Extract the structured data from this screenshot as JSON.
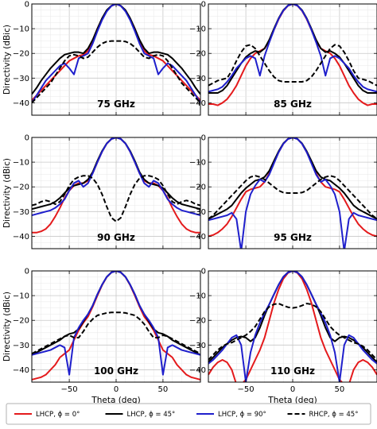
{
  "chart_data": {
    "type": "line",
    "layout": "3x2 grid",
    "xlabel": "Theta (deg)",
    "ylabel": "Directivity (dBic)",
    "xlim": [
      -90,
      90
    ],
    "ylim": [
      -45,
      0
    ],
    "xticks": [
      -50,
      0,
      50
    ],
    "yticks": [
      0,
      -10,
      -20,
      -30,
      -40
    ],
    "xtick_labels": [
      "−50",
      "0",
      "50"
    ],
    "ytick_labels": [
      "0",
      "−10",
      "−20",
      "−30",
      "−40"
    ],
    "grid": true,
    "legend": {
      "placement": "bottom",
      "entries": [
        {
          "label": "LHCP, ϕ = 0°",
          "color": "#e41a1c",
          "dash": "solid"
        },
        {
          "label": "LHCP, ϕ = 45°",
          "color": "#000000",
          "dash": "solid"
        },
        {
          "label": "LHCP, ϕ = 90°",
          "color": "#1f1fcc",
          "dash": "solid"
        },
        {
          "label": "RHCP, ϕ = 45°",
          "color": "#000000",
          "dash": "dashed"
        }
      ]
    },
    "x": [
      -90,
      -85,
      -80,
      -75,
      -70,
      -65,
      -60,
      -55,
      -50,
      -45,
      -40,
      -35,
      -30,
      -25,
      -20,
      -15,
      -10,
      -5,
      0,
      5,
      10,
      15,
      20,
      25,
      30,
      35,
      40,
      45,
      50,
      55,
      60,
      65,
      70,
      75,
      80,
      85,
      90
    ],
    "panels": [
      {
        "label": "75 GHz",
        "series": {
          "lhcp_phi0": [
            -39,
            -37,
            -35,
            -33,
            -31,
            -29,
            -27,
            -25,
            -23,
            -22,
            -21,
            -20.5,
            -19,
            -15,
            -10,
            -6,
            -2.8,
            -0.8,
            0,
            -0.8,
            -2.8,
            -6,
            -10,
            -15,
            -19,
            -20.5,
            -21,
            -22,
            -23,
            -25,
            -27,
            -29,
            -31,
            -33,
            -35,
            -37,
            -39
          ],
          "lhcp_phi45": [
            -36.5,
            -34,
            -31,
            -28.5,
            -26,
            -24,
            -22,
            -20.5,
            -20,
            -19.5,
            -19.5,
            -20,
            -18,
            -14.5,
            -10,
            -5.8,
            -2.5,
            -0.7,
            0,
            -0.7,
            -2.5,
            -5.8,
            -10,
            -14.5,
            -18,
            -20,
            -19.5,
            -19.5,
            -20,
            -20.5,
            -22,
            -24,
            -26,
            -28.5,
            -31,
            -34,
            -36.5
          ],
          "lhcp_phi90": [
            -40,
            -37,
            -34,
            -31,
            -29,
            -27,
            -25,
            -24,
            -26,
            -28.5,
            -22,
            -21,
            -20,
            -16,
            -11,
            -6.5,
            -3,
            -0.8,
            0,
            -0.8,
            -3,
            -6.5,
            -11,
            -16,
            -20,
            -21,
            -22,
            -28.5,
            -26,
            -24,
            -25,
            -27,
            -29,
            -31,
            -34,
            -37,
            -40
          ],
          "rhcp_phi45": [
            -40,
            -38,
            -36,
            -34,
            -32,
            -29,
            -26,
            -23,
            -21,
            -20.5,
            -21,
            -22,
            -21.5,
            -19.5,
            -17.5,
            -16,
            -15.2,
            -15,
            -15,
            -15,
            -15.2,
            -16,
            -17.5,
            -19.5,
            -21.5,
            -22,
            -21,
            -20.5,
            -21,
            -23,
            -26,
            -29,
            -32,
            -34,
            -36,
            -38,
            -40
          ]
        }
      },
      {
        "label": "85 GHz",
        "series": {
          "lhcp_phi0": [
            -40.5,
            -40.5,
            -41,
            -40,
            -38.5,
            -36,
            -33,
            -29,
            -25,
            -22,
            -20,
            -19,
            -18,
            -15,
            -10.5,
            -6.2,
            -2.8,
            -0.7,
            0,
            -0.7,
            -2.8,
            -6.2,
            -10.5,
            -15,
            -18,
            -19,
            -20,
            -22,
            -25,
            -29,
            -33,
            -36,
            -38.5,
            -40,
            -41,
            -40.5,
            -40.5
          ],
          "lhcp_phi45": [
            -36,
            -36,
            -36,
            -35,
            -33,
            -30,
            -27,
            -24,
            -21.5,
            -20,
            -19,
            -19.5,
            -18,
            -14.5,
            -10,
            -5.8,
            -2.5,
            -0.6,
            0,
            -0.6,
            -2.5,
            -5.8,
            -10,
            -14.5,
            -18,
            -19.5,
            -19,
            -20,
            -21.5,
            -24,
            -27,
            -30,
            -33,
            -35,
            -36,
            -36,
            -36
          ],
          "lhcp_phi90": [
            -35.5,
            -35,
            -34.5,
            -33.5,
            -31.5,
            -29,
            -26,
            -24,
            -22,
            -21,
            -22,
            -29,
            -21,
            -15.5,
            -10.5,
            -6,
            -2.7,
            -0.6,
            0,
            -0.6,
            -2.7,
            -6,
            -10.5,
            -15.5,
            -21,
            -29,
            -22,
            -21,
            -22,
            -24,
            -26,
            -29,
            -31.5,
            -33.5,
            -34.5,
            -35,
            -35.5
          ],
          "rhcp_phi45": [
            -33,
            -32,
            -31,
            -30.5,
            -30,
            -27,
            -23,
            -19.5,
            -17,
            -16.5,
            -18,
            -21,
            -24,
            -27,
            -29.5,
            -31,
            -31.5,
            -31.5,
            -31.5,
            -31.5,
            -31.5,
            -31,
            -29.5,
            -27,
            -24,
            -21,
            -18,
            -16.5,
            -17,
            -19.5,
            -23,
            -27,
            -30,
            -30.5,
            -31,
            -32,
            -33
          ]
        }
      },
      {
        "label": "90 GHz",
        "series": {
          "lhcp_phi0": [
            -38.5,
            -38.5,
            -38,
            -37,
            -35,
            -32,
            -28.5,
            -24.5,
            -21.5,
            -19.5,
            -18.5,
            -18.5,
            -17.5,
            -14.5,
            -10,
            -5.8,
            -2.5,
            -0.6,
            0,
            -0.6,
            -2.5,
            -5.8,
            -10,
            -14.5,
            -17.5,
            -18.5,
            -18.5,
            -19.5,
            -21.5,
            -24.5,
            -28.5,
            -32,
            -35,
            -37,
            -38,
            -38.5,
            -38.5
          ],
          "lhcp_phi45": [
            -29,
            -28.5,
            -28,
            -27.5,
            -27,
            -26,
            -24.5,
            -22.5,
            -20.5,
            -19.5,
            -19,
            -18.5,
            -17,
            -14,
            -9.5,
            -5.5,
            -2.4,
            -0.6,
            0,
            -0.6,
            -2.4,
            -5.5,
            -9.5,
            -14,
            -17,
            -18.5,
            -19,
            -19.5,
            -20.5,
            -22.5,
            -24.5,
            -26,
            -27,
            -27.5,
            -28,
            -28.5,
            -29
          ],
          "lhcp_phi90": [
            -31.5,
            -31,
            -30.5,
            -30,
            -29.5,
            -28.5,
            -27,
            -25,
            -21.5,
            -18.5,
            -17.5,
            -20,
            -18.5,
            -14.5,
            -10,
            -5.8,
            -2.5,
            -0.6,
            0,
            -0.6,
            -2.5,
            -5.8,
            -10,
            -14.5,
            -18.5,
            -20,
            -17.5,
            -18.5,
            -21.5,
            -25,
            -27,
            -28.5,
            -29.5,
            -30,
            -30.5,
            -31,
            -31.5
          ],
          "rhcp_phi45": [
            -27.5,
            -27,
            -26,
            -25.5,
            -26,
            -27,
            -26,
            -23,
            -19.5,
            -17,
            -16,
            -15.5,
            -15.5,
            -16.5,
            -19,
            -23,
            -28,
            -32.5,
            -34,
            -32.5,
            -28,
            -23,
            -19,
            -16.5,
            -15.5,
            -15.5,
            -16,
            -17,
            -19.5,
            -23,
            -26,
            -27,
            -26,
            -25.5,
            -26,
            -27,
            -27.5
          ]
        }
      },
      {
        "label": "95 GHz",
        "series": {
          "lhcp_phi0": [
            -40,
            -39.5,
            -38.5,
            -37,
            -35,
            -32,
            -28.5,
            -25,
            -22,
            -21,
            -20.5,
            -20,
            -18,
            -14.5,
            -10,
            -6,
            -2.6,
            -0.6,
            0,
            -0.6,
            -2.6,
            -6,
            -10,
            -14.5,
            -18,
            -20,
            -20.5,
            -21,
            -22,
            -25,
            -28.5,
            -32,
            -35,
            -37,
            -38.5,
            -39.5,
            -40
          ],
          "lhcp_phi45": [
            -33,
            -32,
            -31,
            -30,
            -29,
            -27.5,
            -25,
            -22.5,
            -20.5,
            -19,
            -17.5,
            -17,
            -16,
            -13.5,
            -9.5,
            -5.6,
            -2.4,
            -0.6,
            0,
            -0.6,
            -2.4,
            -5.6,
            -9.5,
            -13.5,
            -16,
            -17,
            -17.5,
            -19,
            -20.5,
            -22.5,
            -25,
            -27.5,
            -29,
            -30,
            -31,
            -32,
            -33
          ],
          "lhcp_phi90": [
            -33.5,
            -33,
            -32.5,
            -32,
            -31.5,
            -30.5,
            -33,
            -46,
            -30,
            -23,
            -19.5,
            -17,
            -18,
            -15,
            -10.5,
            -6,
            -2.6,
            -0.6,
            0,
            -0.6,
            -2.6,
            -6,
            -10.5,
            -15,
            -18,
            -17,
            -19.5,
            -23,
            -30,
            -46,
            -33,
            -30.5,
            -31.5,
            -32,
            -32.5,
            -33,
            -33.5
          ],
          "rhcp_phi45": [
            -33,
            -31.5,
            -29.5,
            -27.5,
            -25.5,
            -23.5,
            -21.5,
            -19.5,
            -17.5,
            -16,
            -15.5,
            -16,
            -17,
            -18.5,
            -20,
            -21.5,
            -22.3,
            -22.5,
            -22.5,
            -22.5,
            -22.3,
            -21.5,
            -20,
            -18.5,
            -17,
            -16,
            -15.5,
            -16,
            -17.5,
            -19.5,
            -21.5,
            -23.5,
            -25.5,
            -27.5,
            -29.5,
            -31.5,
            -33
          ]
        }
      },
      {
        "label": "100 GHz",
        "series": {
          "lhcp_phi0": [
            -44,
            -43.5,
            -43,
            -42,
            -40,
            -38,
            -35,
            -33.5,
            -32,
            -28,
            -24,
            -21,
            -18.5,
            -14.5,
            -10,
            -5.8,
            -2.5,
            -0.6,
            0,
            -0.6,
            -2.5,
            -5.8,
            -10,
            -14.5,
            -18.5,
            -21,
            -24,
            -28,
            -32,
            -33.5,
            -35,
            -38,
            -40,
            -42,
            -43,
            -43.5,
            -44
          ],
          "lhcp_phi45": [
            -34,
            -33,
            -32,
            -31,
            -30,
            -29,
            -28,
            -26.5,
            -25.5,
            -25,
            -23.5,
            -20.5,
            -17.5,
            -14,
            -9.5,
            -5.6,
            -2.4,
            -0.6,
            0,
            -0.6,
            -2.4,
            -5.6,
            -9.5,
            -14,
            -17.5,
            -20.5,
            -23.5,
            -25,
            -25.5,
            -26.5,
            -28,
            -29,
            -30,
            -31,
            -32,
            -33,
            -34
          ],
          "lhcp_phi90": [
            -34,
            -33.5,
            -33,
            -32.5,
            -32,
            -31,
            -30,
            -31,
            -42,
            -27,
            -23,
            -20,
            -17.5,
            -14,
            -9.5,
            -5.6,
            -2.4,
            -0.6,
            0,
            -0.6,
            -2.4,
            -5.6,
            -9.5,
            -14,
            -17.5,
            -20,
            -23,
            -27,
            -42,
            -31,
            -30,
            -31,
            -32,
            -32.5,
            -33,
            -33.5,
            -34
          ],
          "rhcp_phi45": [
            -33.5,
            -32.5,
            -31.5,
            -30.5,
            -29.5,
            -28.5,
            -27.5,
            -26.5,
            -26,
            -27,
            -27,
            -24.5,
            -21.5,
            -19.5,
            -18,
            -17.5,
            -17,
            -16.8,
            -16.8,
            -16.8,
            -17,
            -17.5,
            -18,
            -19.5,
            -21.5,
            -24.5,
            -27,
            -27,
            -26,
            -26.5,
            -27.5,
            -28.5,
            -29.5,
            -30.5,
            -31.5,
            -32.5,
            -33.5
          ]
        }
      },
      {
        "label": "110 GHz",
        "series": {
          "lhcp_phi0": [
            -42,
            -39,
            -37,
            -36,
            -37,
            -40,
            -46,
            -46,
            -44,
            -40,
            -36,
            -32,
            -27,
            -20,
            -13,
            -7.5,
            -3.2,
            -0.8,
            0,
            -0.8,
            -3.2,
            -7.5,
            -13,
            -20,
            -27,
            -32,
            -36,
            -40,
            -44,
            -46,
            -46,
            -40,
            -37,
            -36,
            -37,
            -39,
            -42
          ],
          "lhcp_phi45": [
            -37,
            -35,
            -33,
            -31,
            -29.5,
            -28,
            -27,
            -26.5,
            -27,
            -28.5,
            -27,
            -23,
            -18,
            -13.5,
            -9.5,
            -5.6,
            -2.4,
            -0.6,
            0,
            -0.6,
            -2.4,
            -5.6,
            -9.5,
            -13.5,
            -18,
            -23,
            -27,
            -28.5,
            -27,
            -26.5,
            -27,
            -28,
            -29.5,
            -31,
            -33,
            -35,
            -37
          ],
          "lhcp_phi90": [
            -37.5,
            -36,
            -34,
            -32,
            -29.5,
            -27,
            -26,
            -30,
            -45,
            -33,
            -26,
            -21,
            -17,
            -13.5,
            -9.5,
            -5.6,
            -2.4,
            -0.6,
            0,
            -0.6,
            -2.4,
            -5.6,
            -9.5,
            -13.5,
            -17,
            -21,
            -26,
            -33,
            -45,
            -30,
            -26,
            -27,
            -29.5,
            -32,
            -34,
            -36,
            -37.5
          ],
          "rhcp_phi45": [
            -36,
            -34,
            -32,
            -30.5,
            -29.5,
            -29,
            -28,
            -27,
            -26,
            -24.5,
            -22.5,
            -19.5,
            -16.5,
            -14.5,
            -13.5,
            -13.2,
            -14,
            -14.7,
            -15,
            -14.7,
            -14,
            -13.2,
            -13.5,
            -14.5,
            -16.5,
            -19.5,
            -22.5,
            -24.5,
            -26,
            -27,
            -28,
            -29,
            -29.5,
            -30.5,
            -32,
            -34,
            -36
          ]
        }
      }
    ]
  }
}
